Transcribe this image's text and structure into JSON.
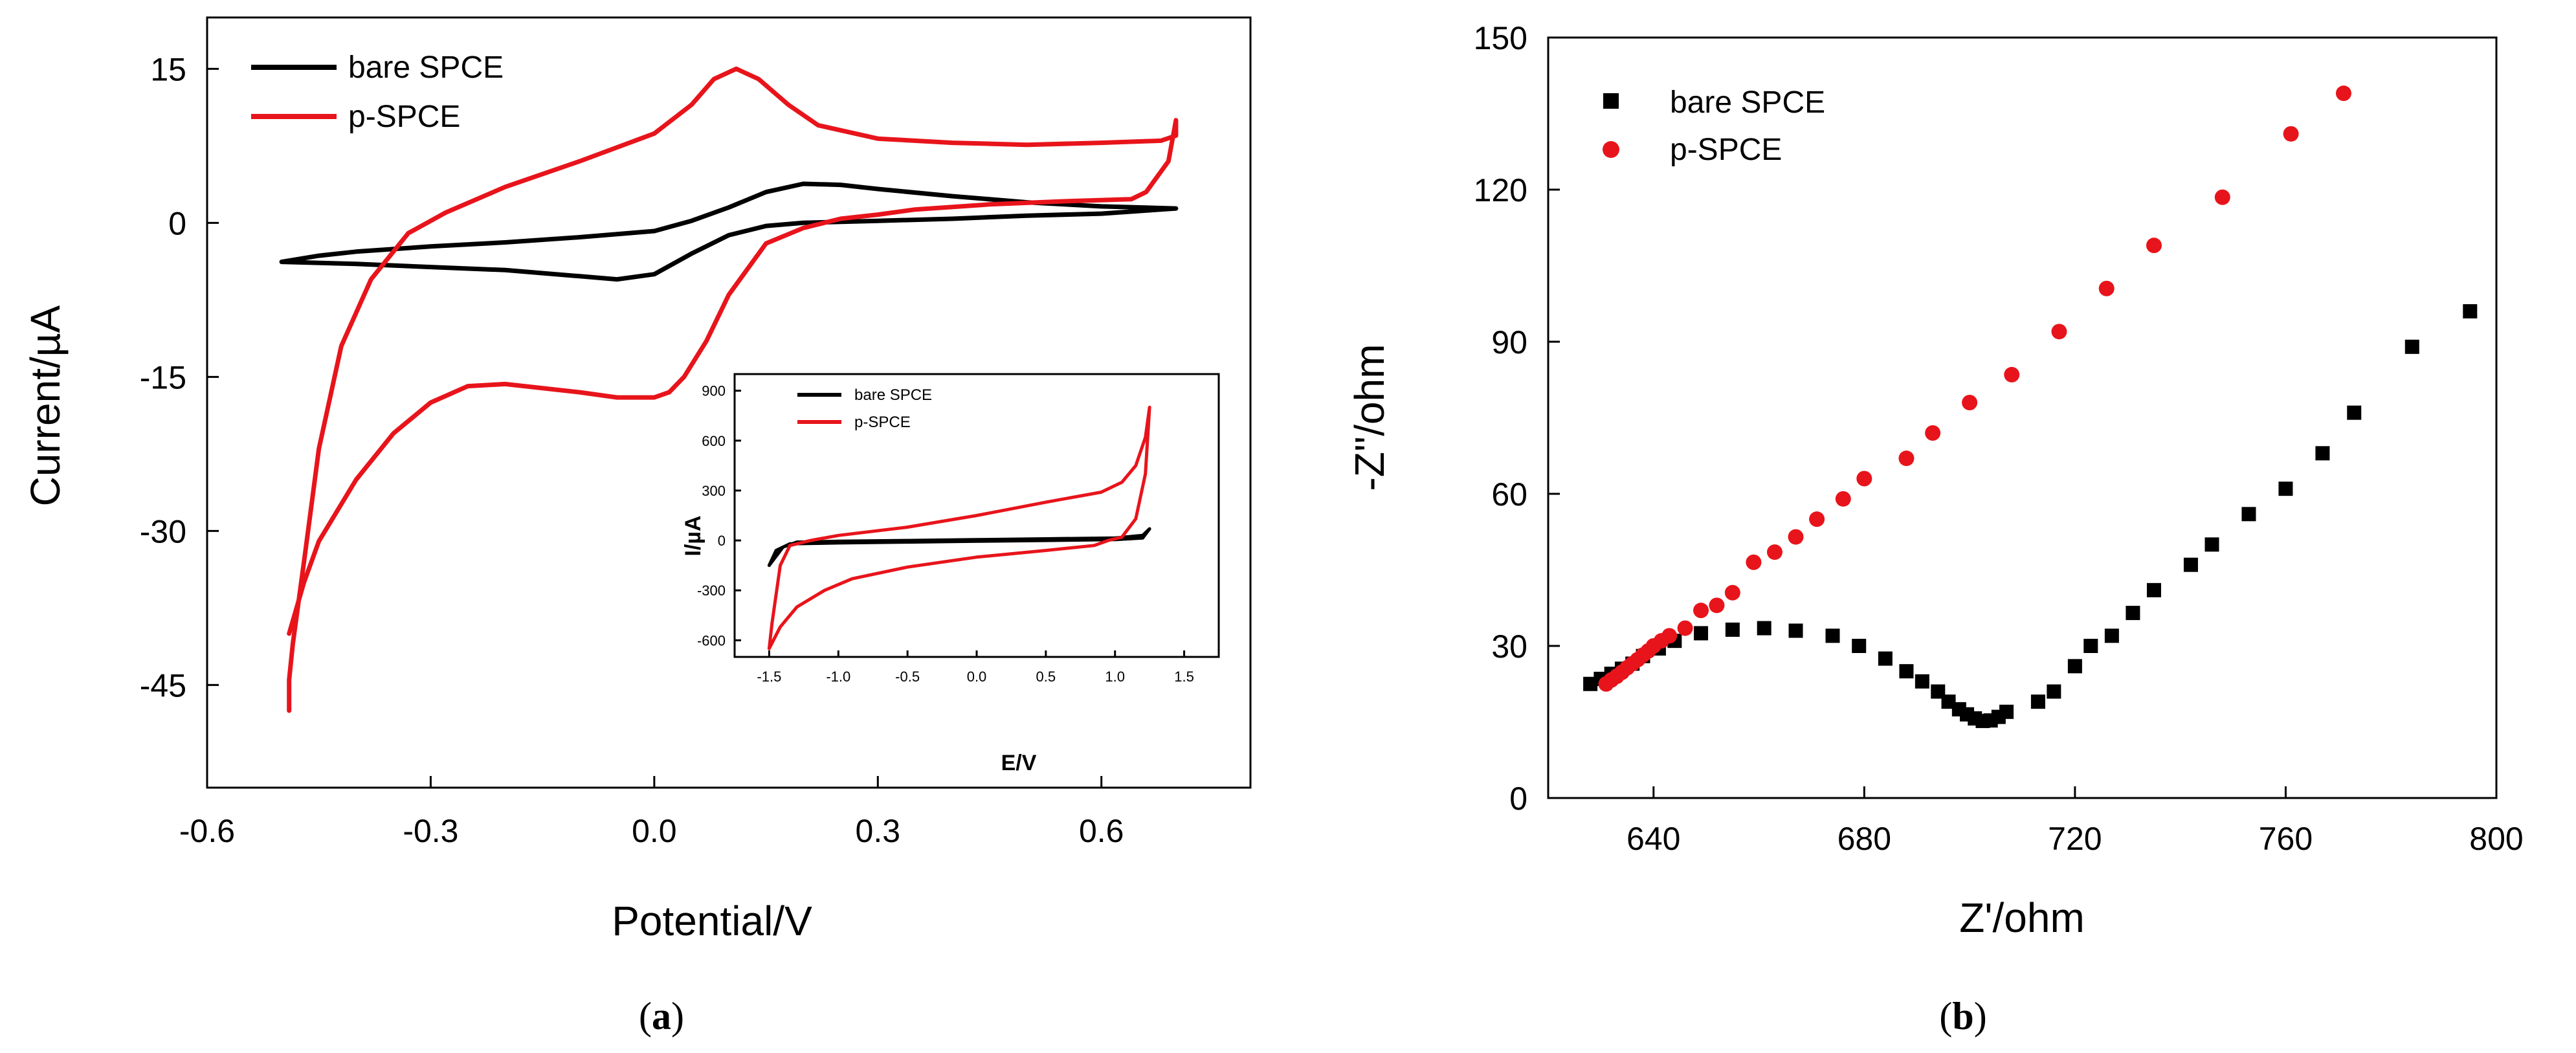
{
  "colors": {
    "bare": "#000000",
    "p": "#e8141b"
  },
  "panel_labels": {
    "a": "a",
    "b": "b"
  },
  "chart_data": [
    {
      "id": "a",
      "type": "line",
      "xlabel": "Potential/V",
      "ylabel": "Current/µA",
      "xlim": [
        -0.6,
        0.8
      ],
      "ylim": [
        -55,
        20
      ],
      "xticks": [
        -0.6,
        -0.3,
        0.0,
        0.3,
        0.6
      ],
      "xtick_labels": [
        "-0.6",
        "-0.3",
        "0.0",
        "0.3",
        "0.6"
      ],
      "yticks": [
        -45,
        -30,
        -15,
        0,
        15
      ],
      "ytick_labels": [
        "-45",
        "-30",
        "-15",
        "0",
        "15"
      ],
      "legend_position": "top-left",
      "series": [
        {
          "name": "bare SPCE",
          "color": "#000000",
          "points": [
            [
              -0.5,
              -3.8
            ],
            [
              -0.45,
              -3.2
            ],
            [
              -0.4,
              -2.8
            ],
            [
              -0.3,
              -2.3
            ],
            [
              -0.2,
              -1.9
            ],
            [
              -0.1,
              -1.4
            ],
            [
              0.0,
              -0.8
            ],
            [
              0.05,
              0.2
            ],
            [
              0.1,
              1.5
            ],
            [
              0.15,
              3.0
            ],
            [
              0.2,
              3.8
            ],
            [
              0.25,
              3.7
            ],
            [
              0.3,
              3.3
            ],
            [
              0.4,
              2.6
            ],
            [
              0.5,
              2.0
            ],
            [
              0.6,
              1.6
            ],
            [
              0.7,
              1.4
            ],
            [
              0.6,
              0.9
            ],
            [
              0.5,
              0.7
            ],
            [
              0.4,
              0.4
            ],
            [
              0.3,
              0.2
            ],
            [
              0.2,
              0.0
            ],
            [
              0.15,
              -0.3
            ],
            [
              0.1,
              -1.2
            ],
            [
              0.05,
              -3.0
            ],
            [
              0.0,
              -5.0
            ],
            [
              -0.05,
              -5.5
            ],
            [
              -0.1,
              -5.2
            ],
            [
              -0.2,
              -4.6
            ],
            [
              -0.3,
              -4.3
            ],
            [
              -0.4,
              -4.0
            ],
            [
              -0.5,
              -3.8
            ]
          ]
        },
        {
          "name": "p-SPCE",
          "color": "#e8141b",
          "points": [
            [
              -0.49,
              -47.5
            ],
            [
              -0.49,
              -44.5
            ],
            [
              -0.485,
              -41.0
            ],
            [
              -0.47,
              -33.0
            ],
            [
              -0.45,
              -22.0
            ],
            [
              -0.42,
              -12.0
            ],
            [
              -0.38,
              -5.5
            ],
            [
              -0.33,
              -1.0
            ],
            [
              -0.28,
              1.0
            ],
            [
              -0.2,
              3.5
            ],
            [
              -0.1,
              6.0
            ],
            [
              0.0,
              8.7
            ],
            [
              0.05,
              11.5
            ],
            [
              0.08,
              14.0
            ],
            [
              0.11,
              15.0
            ],
            [
              0.14,
              14.0
            ],
            [
              0.18,
              11.5
            ],
            [
              0.22,
              9.5
            ],
            [
              0.3,
              8.2
            ],
            [
              0.4,
              7.8
            ],
            [
              0.5,
              7.6
            ],
            [
              0.6,
              7.8
            ],
            [
              0.68,
              8.0
            ],
            [
              0.7,
              8.5
            ],
            [
              0.7,
              10.0
            ],
            [
              0.69,
              6.0
            ],
            [
              0.66,
              3.0
            ],
            [
              0.64,
              2.3
            ],
            [
              0.55,
              2.1
            ],
            [
              0.45,
              1.8
            ],
            [
              0.35,
              1.3
            ],
            [
              0.3,
              0.8
            ],
            [
              0.25,
              0.4
            ],
            [
              0.2,
              -0.5
            ],
            [
              0.15,
              -2.0
            ],
            [
              0.1,
              -7.0
            ],
            [
              0.07,
              -11.5
            ],
            [
              0.04,
              -15.0
            ],
            [
              0.02,
              -16.5
            ],
            [
              0.0,
              -17.0
            ],
            [
              -0.05,
              -17.0
            ],
            [
              -0.1,
              -16.5
            ],
            [
              -0.2,
              -15.7
            ],
            [
              -0.25,
              -15.9
            ],
            [
              -0.3,
              -17.5
            ],
            [
              -0.35,
              -20.5
            ],
            [
              -0.4,
              -25.0
            ],
            [
              -0.45,
              -31.0
            ],
            [
              -0.47,
              -35.0
            ],
            [
              -0.49,
              -40.0
            ]
          ]
        }
      ],
      "inset": {
        "type": "line",
        "xlabel": "E/V",
        "ylabel": "I/µA",
        "xlim": [
          -1.75,
          1.75
        ],
        "ylim": [
          -700,
          1000
        ],
        "xticks": [
          -1.5,
          -1.0,
          -0.5,
          0.0,
          0.5,
          1.0,
          1.5
        ],
        "xtick_labels": [
          "-1.5",
          "-1.0",
          "-0.5",
          "0.0",
          "0.5",
          "1.0",
          "1.5"
        ],
        "yticks": [
          -600,
          -300,
          0,
          300,
          600,
          900
        ],
        "ytick_labels": [
          "-600",
          "-300",
          "0",
          "300",
          "600",
          "900"
        ],
        "legend_position": "top-left",
        "series": [
          {
            "name": "bare SPCE",
            "color": "#000000",
            "points": [
              [
                -1.5,
                -150
              ],
              [
                -1.45,
                -60
              ],
              [
                -1.35,
                -20
              ],
              [
                -1.0,
                -15
              ],
              [
                -0.5,
                -10
              ],
              [
                0.0,
                -5
              ],
              [
                0.5,
                0
              ],
              [
                1.0,
                5
              ],
              [
                1.2,
                15
              ],
              [
                1.25,
                70
              ],
              [
                1.2,
                30
              ],
              [
                1.0,
                15
              ],
              [
                0.5,
                10
              ],
              [
                0.0,
                5
              ],
              [
                -0.5,
                0
              ],
              [
                -1.0,
                -5
              ],
              [
                -1.3,
                -10
              ],
              [
                -1.4,
                -40
              ],
              [
                -1.5,
                -150
              ]
            ]
          },
          {
            "name": "p-SPCE",
            "color": "#e8141b",
            "points": [
              [
                -1.5,
                -650
              ],
              [
                -1.48,
                -500
              ],
              [
                -1.42,
                -150
              ],
              [
                -1.35,
                -30
              ],
              [
                -1.2,
                0
              ],
              [
                -1.0,
                30
              ],
              [
                -0.5,
                80
              ],
              [
                0.0,
                150
              ],
              [
                0.5,
                230
              ],
              [
                0.9,
                290
              ],
              [
                1.05,
                350
              ],
              [
                1.15,
                450
              ],
              [
                1.22,
                620
              ],
              [
                1.25,
                800
              ],
              [
                1.22,
                400
              ],
              [
                1.15,
                130
              ],
              [
                1.05,
                20
              ],
              [
                0.95,
                0
              ],
              [
                0.85,
                -30
              ],
              [
                0.5,
                -60
              ],
              [
                0.0,
                -100
              ],
              [
                -0.5,
                -160
              ],
              [
                -0.9,
                -230
              ],
              [
                -1.1,
                -300
              ],
              [
                -1.3,
                -400
              ],
              [
                -1.42,
                -520
              ],
              [
                -1.5,
                -650
              ]
            ]
          }
        ]
      }
    },
    {
      "id": "b",
      "type": "scatter",
      "xlabel": "Z'/ohm",
      "ylabel": "-Z''/ohm",
      "xlim": [
        620,
        800
      ],
      "ylim": [
        0,
        150
      ],
      "xticks": [
        640,
        680,
        720,
        760,
        800
      ],
      "xtick_labels": [
        "640",
        "680",
        "720",
        "760",
        "800"
      ],
      "yticks": [
        0,
        30,
        60,
        90,
        120,
        150
      ],
      "ytick_labels": [
        "0",
        "30",
        "60",
        "90",
        "120",
        "150"
      ],
      "legend_position": "top-left",
      "series": [
        {
          "name": "bare SPCE",
          "color": "#000000",
          "marker": "square",
          "points": [
            [
              628,
              22.5
            ],
            [
              630,
              23.5
            ],
            [
              632,
              24.5
            ],
            [
              634,
              25.5
            ],
            [
              636,
              26.5
            ],
            [
              638,
              28
            ],
            [
              641,
              29.5
            ],
            [
              644,
              31
            ],
            [
              649,
              32.5
            ],
            [
              655,
              33.2
            ],
            [
              661,
              33.5
            ],
            [
              667,
              33
            ],
            [
              674,
              32
            ],
            [
              679,
              30
            ],
            [
              684,
              27.5
            ],
            [
              688,
              25
            ],
            [
              691,
              23
            ],
            [
              694,
              21
            ],
            [
              696,
              19
            ],
            [
              698,
              17.5
            ],
            [
              699.5,
              16.5
            ],
            [
              701,
              15.7
            ],
            [
              702.5,
              15.2
            ],
            [
              704,
              15.3
            ],
            [
              705.5,
              16
            ],
            [
              707,
              17
            ],
            [
              713,
              19
            ],
            [
              716,
              21
            ],
            [
              720,
              26
            ],
            [
              723,
              30
            ],
            [
              727,
              32
            ],
            [
              731,
              36.5
            ],
            [
              735,
              41
            ],
            [
              742,
              46
            ],
            [
              746,
              50
            ],
            [
              753,
              56
            ],
            [
              760,
              61
            ],
            [
              767,
              68
            ],
            [
              773,
              76
            ],
            [
              784,
              89
            ],
            [
              795,
              96
            ]
          ]
        },
        {
          "name": "p-SPCE",
          "color": "#e8141b",
          "marker": "circle",
          "points": [
            [
              631,
              22.5
            ],
            [
              632,
              23.3
            ],
            [
              633,
              24
            ],
            [
              634,
              24.8
            ],
            [
              635,
              25.7
            ],
            [
              636,
              26.5
            ],
            [
              637,
              27.3
            ],
            [
              638,
              28.2
            ],
            [
              639,
              29
            ],
            [
              640,
              30
            ],
            [
              641.5,
              31
            ],
            [
              643,
              32
            ],
            [
              646,
              33.5
            ],
            [
              649,
              37
            ],
            [
              652,
              38
            ],
            [
              655,
              40.5
            ],
            [
              659,
              46.5
            ],
            [
              663,
              48.5
            ],
            [
              667,
              51.5
            ],
            [
              671,
              55
            ],
            [
              676,
              59
            ],
            [
              680,
              63
            ],
            [
              688,
              67
            ],
            [
              693,
              72
            ],
            [
              700,
              78
            ],
            [
              708,
              83.5
            ],
            [
              717,
              92
            ],
            [
              726,
              100.5
            ],
            [
              735,
              109
            ],
            [
              748,
              118.5
            ],
            [
              761,
              131
            ],
            [
              771,
              139
            ]
          ]
        }
      ]
    }
  ]
}
